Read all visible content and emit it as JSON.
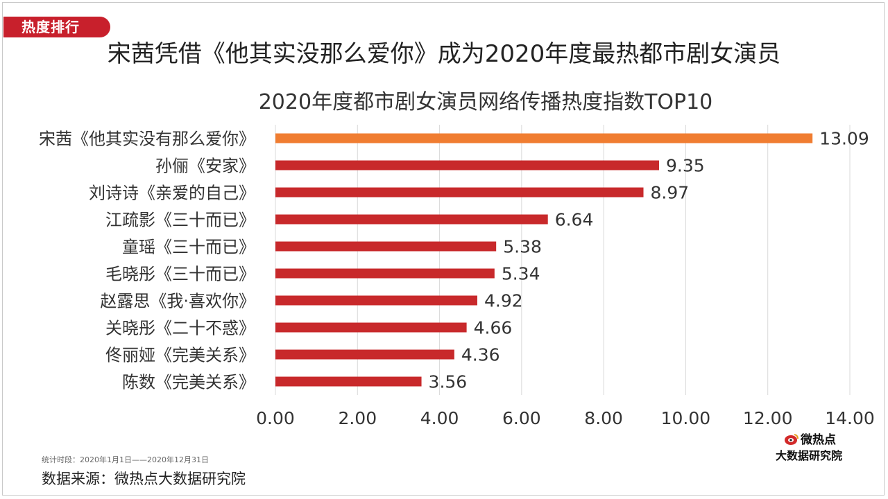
{
  "header": {
    "tag_label": "热度排行",
    "title": "宋茜凭借《他其实没那么爱你》成为2020年度最热都市剧女演员"
  },
  "chart_data": {
    "type": "bar",
    "orientation": "horizontal",
    "title": "2020年度都市剧女演员网络传播热度指数TOP10",
    "categories": [
      "宋茜《他其实没有那么爱你》",
      "孙俪《安家》",
      "刘诗诗《亲爱的自己》",
      "江疏影《三十而已》",
      "童瑶《三十而已》",
      "毛晓彤《三十而已》",
      "赵露思《我·喜欢你》",
      "关晓彤《二十不惑》",
      "佟丽娅《完美关系》",
      "陈数《完美关系》"
    ],
    "values": [
      13.09,
      9.35,
      8.97,
      6.64,
      5.38,
      5.34,
      4.92,
      4.66,
      4.36,
      3.56
    ],
    "value_labels": [
      "13.09",
      "9.35",
      "8.97",
      "6.64",
      "5.38",
      "5.34",
      "4.92",
      "4.66",
      "4.36",
      "3.56"
    ],
    "xlim": [
      0,
      14
    ],
    "ticks": [
      "0.00",
      "2.00",
      "4.00",
      "6.00",
      "8.00",
      "10.00",
      "12.00",
      "14.00"
    ],
    "grid": true,
    "colors": {
      "highlight": "#f07d31",
      "bar": "#c8292b",
      "grid": "#d9d9d9"
    }
  },
  "footer": {
    "period": "统计时段：2020年1月1日——2020年12月31日",
    "source": "数据来源：微热点大数据研究院"
  },
  "logo": {
    "top_text": "微热点",
    "bottom_text": "大数据研究院",
    "icon": "weibo-eye-icon"
  }
}
